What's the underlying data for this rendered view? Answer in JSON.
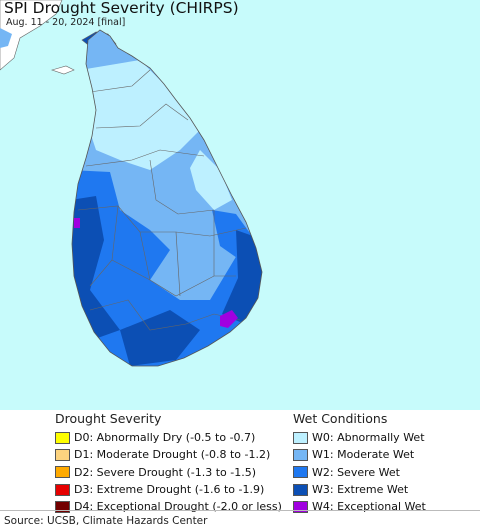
{
  "header": {
    "title": "SPI Drought Severity (CHIRPS)",
    "subtitle": "Aug. 11 - 20, 2024 [final]"
  },
  "map": {
    "ocean_color": "#c7fbfb",
    "land_outside_color": "#ffffff",
    "border_color": "#666666"
  },
  "legend": {
    "drought_title": "Drought Severity",
    "wet_title": "Wet Conditions",
    "drought": [
      {
        "label": "D0: Abnormally Dry (-0.5 to -0.7)",
        "color": "#ffff00"
      },
      {
        "label": "D1: Moderate Drought (-0.8 to -1.2)",
        "color": "#fcd37f"
      },
      {
        "label": "D2: Severe Drought (-1.3 to -1.5)",
        "color": "#ffaa00"
      },
      {
        "label": "D3: Extreme Drought (-1.6 to -1.9)",
        "color": "#e60000"
      },
      {
        "label": "D4: Exceptional Drought (-2.0 or less)",
        "color": "#730000"
      }
    ],
    "wet": [
      {
        "label": "W0: Abnormally Wet",
        "color": "#bdf0ff"
      },
      {
        "label": "W1: Moderate Wet",
        "color": "#75b6f4"
      },
      {
        "label": "W2: Severe Wet",
        "color": "#1f78f0"
      },
      {
        "label": "W3: Extreme Wet",
        "color": "#0c4fb4"
      },
      {
        "label": "W4: Exceptional Wet",
        "color": "#a000e0"
      }
    ]
  },
  "footer": {
    "source": "Source: UCSB, Climate Hazards Center"
  }
}
